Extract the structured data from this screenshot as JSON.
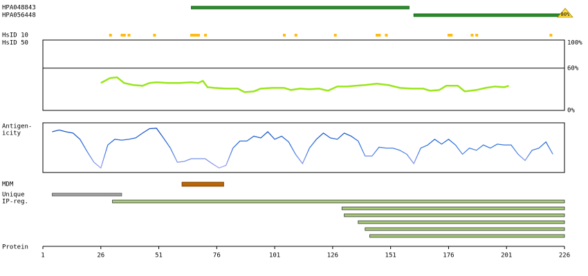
{
  "antibodies": [
    {
      "name": "HPA048843",
      "start": 65,
      "end": 159
    },
    {
      "name": "HPA056448",
      "start": 161,
      "end": 226,
      "marker": "80%"
    }
  ],
  "hsid": {
    "label_10": "HsID 10",
    "label_50": "HsID 50",
    "positions": [
      30,
      35,
      36,
      38,
      49,
      65,
      66,
      67,
      68,
      71,
      105,
      110,
      127,
      145,
      146,
      149,
      176,
      177,
      186,
      188,
      220
    ]
  },
  "identity": {
    "ylim": [
      0,
      100
    ],
    "yticks": [
      {
        "value": 100,
        "label": "100%"
      },
      {
        "value": 60,
        "label": "60%"
      },
      {
        "value": 0,
        "label": "0%"
      }
    ],
    "x": [
      26,
      30,
      33,
      36,
      40,
      44,
      47,
      50,
      55,
      60,
      65,
      68,
      70,
      72,
      75,
      80,
      85,
      88,
      92,
      95,
      100,
      105,
      108,
      112,
      116,
      120,
      124,
      128,
      132,
      136,
      140,
      145,
      150,
      155,
      160,
      165,
      168,
      172,
      175,
      180,
      183,
      188,
      192,
      196,
      200,
      202
    ],
    "values": [
      39,
      46,
      47,
      39,
      36,
      35,
      39,
      40,
      39,
      39,
      40,
      39,
      42,
      33,
      32,
      31,
      31,
      26,
      27,
      31,
      32,
      32,
      29,
      31,
      30,
      31,
      28,
      34,
      34,
      35,
      36,
      38,
      36,
      32,
      31,
      31,
      28,
      29,
      35,
      35,
      27,
      29,
      32,
      34,
      33,
      35
    ]
  },
  "antigenicity": {
    "label_1": "Antigen-",
    "label_2": "icity",
    "ylim": [
      0,
      1
    ],
    "x": [
      5,
      8,
      11,
      14,
      17,
      20,
      23,
      26,
      29,
      32,
      35,
      38,
      41,
      44,
      47,
      50,
      53,
      56,
      59,
      62,
      65,
      68,
      71,
      74,
      77,
      80,
      83,
      86,
      89,
      92,
      95,
      98,
      101,
      104,
      107,
      110,
      113,
      116,
      119,
      122,
      125,
      128,
      131,
      134,
      137,
      140,
      143,
      146,
      149,
      152,
      155,
      158,
      161,
      164,
      167,
      170,
      173,
      176,
      179,
      182,
      185,
      188,
      191,
      194,
      197,
      200,
      203,
      206,
      209,
      212,
      215,
      218,
      221
    ],
    "values": [
      0.86,
      0.9,
      0.86,
      0.83,
      0.69,
      0.42,
      0.17,
      0.04,
      0.56,
      0.69,
      0.67,
      0.69,
      0.72,
      0.83,
      0.93,
      0.94,
      0.72,
      0.49,
      0.17,
      0.19,
      0.25,
      0.25,
      0.25,
      0.14,
      0.04,
      0.1,
      0.49,
      0.65,
      0.65,
      0.76,
      0.72,
      0.86,
      0.69,
      0.76,
      0.63,
      0.35,
      0.14,
      0.49,
      0.69,
      0.83,
      0.72,
      0.69,
      0.83,
      0.76,
      0.65,
      0.31,
      0.31,
      0.51,
      0.49,
      0.49,
      0.44,
      0.35,
      0.14,
      0.49,
      0.56,
      0.69,
      0.58,
      0.69,
      0.56,
      0.35,
      0.49,
      0.44,
      0.56,
      0.49,
      0.58,
      0.56,
      0.56,
      0.35,
      0.21,
      0.44,
      0.49,
      0.63,
      0.35
    ]
  },
  "mdm": {
    "label": "MDM",
    "regions": [
      {
        "start": 61,
        "end": 79
      }
    ]
  },
  "unique": {
    "label": "Unique",
    "regions": [
      {
        "start": 5,
        "end": 35
      }
    ]
  },
  "ip_reg": {
    "label": "IP-reg.",
    "regions": [
      {
        "start": 31,
        "end": 226
      },
      {
        "start": 130,
        "end": 226
      },
      {
        "start": 131,
        "end": 226
      },
      {
        "start": 137,
        "end": 226
      },
      {
        "start": 140,
        "end": 226
      },
      {
        "start": 142,
        "end": 226
      }
    ]
  },
  "protein": {
    "label": "Protein",
    "xlim": [
      1,
      226
    ],
    "xticks": [
      1,
      26,
      51,
      76,
      101,
      126,
      151,
      176,
      201,
      226
    ]
  }
}
